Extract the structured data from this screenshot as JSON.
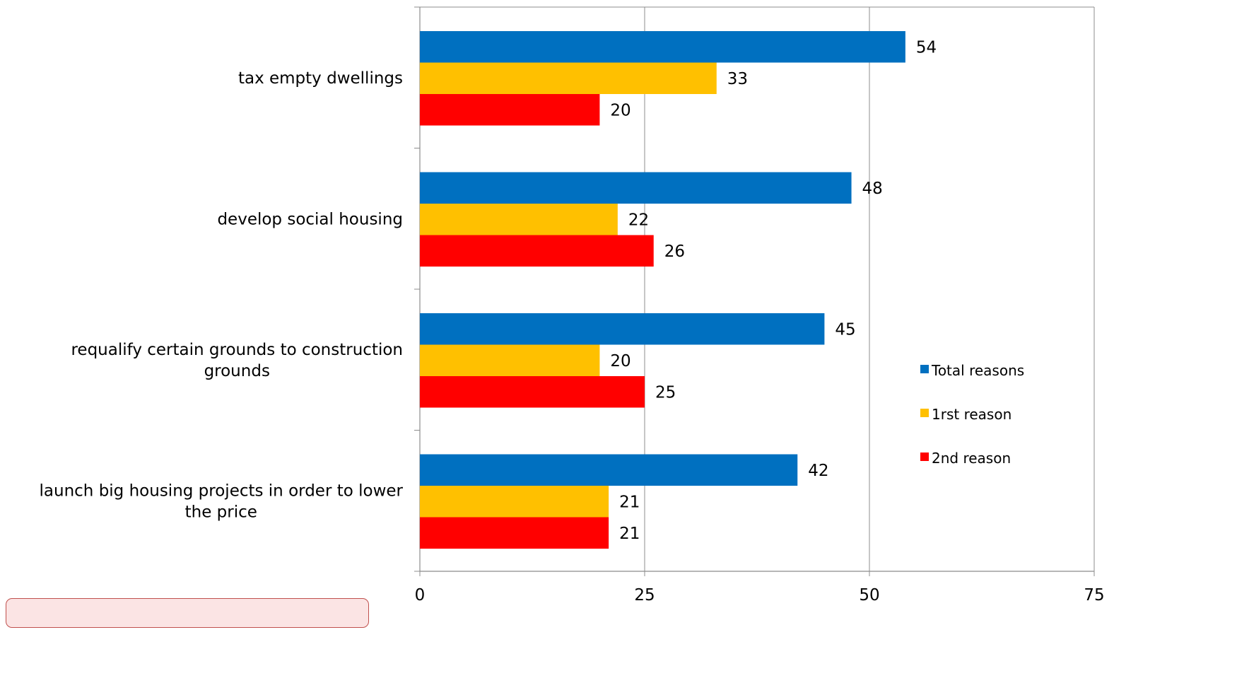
{
  "chart_data": {
    "type": "bar",
    "orientation": "horizontal",
    "title": "",
    "xlabel": "",
    "ylabel": "",
    "categories": [
      "tax empty dwellings",
      "develop social housing",
      "requalify certain grounds to construction grounds",
      "launch big housing projects in order to lower the price"
    ],
    "category_lines": [
      [
        "tax empty dwellings"
      ],
      [
        "develop social housing"
      ],
      [
        "requalify certain grounds to construction",
        "grounds"
      ],
      [
        "launch big housing projects in order to lower",
        "the price"
      ]
    ],
    "series": [
      {
        "name": "Total reasons",
        "color": "#0070c0",
        "values": [
          54,
          48,
          45,
          42
        ]
      },
      {
        "name": "1rst reason",
        "color": "#ffc000",
        "values": [
          33,
          22,
          20,
          21
        ]
      },
      {
        "name": "2nd reason",
        "color": "#ff0000",
        "values": [
          20,
          26,
          25,
          21
        ]
      }
    ],
    "xlim": [
      0,
      75
    ],
    "xticks": [
      "0",
      "25",
      "50",
      "75"
    ],
    "grid": "vertical",
    "legend": "right",
    "data_labels": true
  }
}
